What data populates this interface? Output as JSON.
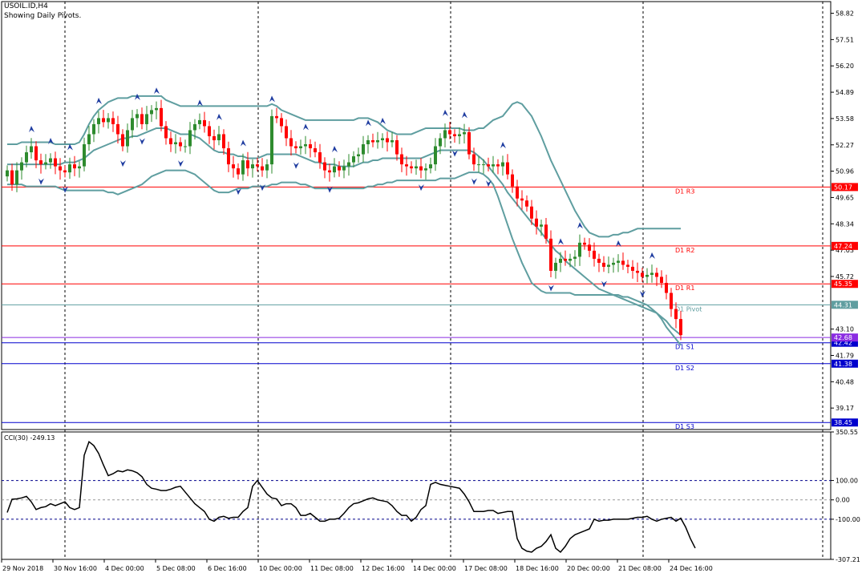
{
  "header": {
    "symbol_line": "USOIL.ID,H4",
    "subtitle": "Showing Daily Pivots."
  },
  "colors": {
    "bull": "#2e8b2e",
    "bear": "#ff0000",
    "band": "#5f9ea0",
    "resistance": "#ff0000",
    "pivot": "#5f9ea0",
    "support": "#0000cd",
    "fractal": "#1e3ca0",
    "axis": "#000000",
    "vline": "#000000"
  },
  "price_axis_ticks": [
    "58.82",
    "57.51",
    "56.20",
    "54.89",
    "53.58",
    "52.27",
    "50.96",
    "49.65",
    "48.34",
    "47.03",
    "45.72",
    "43.10",
    "41.79",
    "40.48",
    "39.17"
  ],
  "pivots": [
    {
      "label": "D1 R3",
      "price": "50.17",
      "kind": "resistance"
    },
    {
      "label": "D1 R2",
      "price": "47.24",
      "kind": "resistance"
    },
    {
      "label": "D1 R1",
      "price": "45.35",
      "kind": "resistance"
    },
    {
      "label": "D1 Pivot",
      "price": "44.31",
      "kind": "pivot"
    },
    {
      "label": "D1 S1",
      "price": "42.42",
      "kind": "support"
    },
    {
      "label": "D1 S2",
      "price": "41.38",
      "kind": "support"
    },
    {
      "label": "D1 S3",
      "price": "38.45",
      "kind": "support"
    }
  ],
  "last_price": "42.68",
  "cci": {
    "label": "CCI(30) -249.13",
    "axis_ticks": [
      "350.55",
      "100.00",
      "0.00",
      "-100.00",
      "-307.21"
    ],
    "levels": [
      100,
      0,
      -100
    ]
  },
  "time_labels": [
    "29 Nov 2018",
    "30 Nov 16:00",
    "4 Dec 00:00",
    "5 Dec 08:00",
    "6 Dec 16:00",
    "10 Dec 00:00",
    "11 Dec 08:00",
    "12 Dec 16:00",
    "14 Dec 00:00",
    "17 Dec 08:00",
    "18 Dec 16:00",
    "20 Dec 00:00",
    "21 Dec 08:00",
    "24 Dec 16:00"
  ],
  "chart_data": {
    "type": "candlestick",
    "symbol": "USOIL.ID",
    "timeframe": "H4",
    "ylim": [
      38.1,
      59.4
    ],
    "cci_ylim": [
      -307.21,
      350.55
    ],
    "candles_count": 141,
    "close": [
      51.0,
      50.3,
      51.0,
      51.4,
      51.9,
      52.2,
      51.5,
      51.3,
      51.4,
      51.6,
      51.2,
      51.0,
      50.9,
      51.3,
      51.1,
      51.2,
      52.3,
      52.8,
      53.3,
      53.6,
      53.4,
      53.6,
      53.3,
      52.8,
      52.2,
      53.0,
      53.6,
      53.8,
      53.3,
      53.8,
      54.0,
      54.1,
      53.2,
      52.6,
      52.3,
      52.4,
      52.2,
      52.2,
      53.0,
      53.3,
      53.5,
      53.2,
      52.7,
      52.5,
      52.8,
      52.1,
      51.3,
      51.1,
      50.8,
      51.5,
      51.1,
      51.3,
      51.2,
      51.0,
      51.3,
      53.7,
      53.6,
      53.2,
      52.6,
      52.2,
      52.1,
      52.2,
      52.3,
      52.1,
      51.9,
      51.4,
      51.0,
      50.9,
      51.2,
      51.0,
      51.2,
      51.4,
      51.7,
      51.8,
      52.3,
      52.5,
      52.4,
      52.5,
      52.6,
      52.4,
      52.5,
      51.8,
      51.3,
      51.2,
      51.1,
      51.2,
      51.0,
      51.1,
      51.3,
      52.2,
      52.6,
      53.0,
      52.8,
      52.7,
      52.8,
      52.9,
      51.8,
      51.3,
      51.3,
      51.3,
      51.2,
      51.3,
      51.2,
      51.4,
      50.8,
      50.2,
      49.6,
      49.5,
      49.2,
      48.6,
      48.2,
      48.3,
      47.6,
      46.0,
      46.4,
      46.6,
      46.5,
      46.6,
      46.7,
      47.4,
      47.3,
      47.0,
      46.6,
      46.4,
      46.2,
      46.3,
      46.4,
      46.5,
      46.3,
      46.2,
      46.0,
      45.9,
      45.7,
      45.8,
      45.9,
      45.7,
      45.4,
      44.9,
      44.1,
      43.6,
      42.8
    ],
    "cci": [
      -65,
      3,
      5,
      10,
      18,
      -10,
      -50,
      -40,
      -35,
      -20,
      -30,
      -20,
      -10,
      -40,
      -50,
      -40,
      230,
      300,
      280,
      240,
      180,
      125,
      135,
      150,
      145,
      155,
      150,
      140,
      120,
      80,
      60,
      55,
      48,
      48,
      55,
      65,
      70,
      40,
      10,
      -20,
      -40,
      -60,
      -100,
      -110,
      -90,
      -85,
      -95,
      -90,
      -90,
      -60,
      -40,
      70,
      100,
      65,
      30,
      10,
      5,
      -30,
      -20,
      -20,
      -40,
      -80,
      -80,
      -70,
      -90,
      -110,
      -110,
      -100,
      -100,
      -95,
      -70,
      -40,
      -20,
      -15,
      -5,
      5,
      10,
      0,
      -5,
      -10,
      -30,
      -60,
      -80,
      -80,
      -110,
      -90,
      -50,
      -30,
      80,
      90,
      80,
      75,
      70,
      65,
      60,
      30,
      -10,
      -60,
      -60,
      -60,
      -55,
      -55,
      -70,
      -65,
      -60,
      -60,
      -200,
      -250,
      -265,
      -270,
      -250,
      -240,
      -215,
      -180,
      -250,
      -270,
      -240,
      -200,
      -180,
      -170,
      -160,
      -150,
      -100,
      -110,
      -105,
      -105,
      -100,
      -100,
      -100,
      -100,
      -95,
      -90,
      -90,
      -85,
      -100,
      -110,
      -100,
      -95,
      -90,
      -110,
      -95,
      -140,
      -200,
      -249.13
    ],
    "bollinger_upper": [
      52.3,
      52.3,
      52.3,
      52.4,
      52.4,
      52.4,
      52.4,
      52.4,
      52.4,
      52.4,
      52.3,
      52.3,
      52.3,
      52.3,
      52.3,
      52.4,
      52.8,
      53.3,
      53.7,
      54.0,
      54.2,
      54.4,
      54.5,
      54.6,
      54.6,
      54.6,
      54.7,
      54.7,
      54.7,
      54.7,
      54.7,
      54.7,
      54.7,
      54.5,
      54.4,
      54.3,
      54.2,
      54.2,
      54.2,
      54.2,
      54.2,
      54.2,
      54.2,
      54.2,
      54.2,
      54.2,
      54.2,
      54.2,
      54.2,
      54.2,
      54.2,
      54.2,
      54.2,
      54.2,
      54.2,
      54.3,
      54.2,
      54.0,
      53.9,
      53.8,
      53.7,
      53.6,
      53.5,
      53.5,
      53.5,
      53.5,
      53.5,
      53.5,
      53.5,
      53.5,
      53.5,
      53.5,
      53.5,
      53.6,
      53.6,
      53.6,
      53.5,
      53.4,
      53.2,
      53.0,
      52.9,
      52.8,
      52.8,
      52.8,
      52.8,
      52.9,
      53.0,
      53.1,
      53.1,
      53.1,
      53.1,
      53.1,
      53.1,
      53.1,
      53.1,
      53.0,
      53.0,
      53.0,
      53.1,
      53.1,
      53.3,
      53.5,
      53.6,
      53.7,
      54.0,
      54.3,
      54.4,
      54.3,
      54.0,
      53.7,
      53.2,
      52.7,
      52.1,
      51.5,
      51.0,
      50.5,
      50.0,
      49.5,
      49.0,
      48.6,
      48.2,
      47.9,
      47.8,
      47.7,
      47.7,
      47.7,
      47.8,
      47.8,
      47.9,
      47.9,
      48.0,
      48.1,
      48.1,
      48.1,
      48.1,
      48.1,
      48.1,
      48.1,
      48.1,
      48.1,
      48.1
    ],
    "bollinger_middle": [
      51.3,
      51.3,
      51.3,
      51.3,
      51.3,
      51.3,
      51.3,
      51.3,
      51.3,
      51.3,
      51.3,
      51.3,
      51.4,
      51.4,
      51.4,
      51.5,
      51.6,
      51.8,
      52.0,
      52.1,
      52.2,
      52.3,
      52.4,
      52.5,
      52.6,
      52.6,
      52.7,
      52.7,
      52.8,
      52.9,
      53.0,
      53.1,
      53.1,
      53.1,
      53.0,
      52.9,
      52.8,
      52.8,
      52.8,
      52.7,
      52.6,
      52.4,
      52.2,
      52.0,
      51.9,
      51.9,
      51.8,
      51.8,
      51.7,
      51.7,
      51.6,
      51.6,
      51.6,
      51.7,
      51.8,
      51.8,
      51.8,
      51.8,
      51.8,
      51.8,
      51.8,
      51.7,
      51.6,
      51.5,
      51.4,
      51.4,
      51.3,
      51.3,
      51.3,
      51.2,
      51.2,
      51.2,
      51.2,
      51.3,
      51.4,
      51.4,
      51.5,
      51.5,
      51.6,
      51.6,
      51.6,
      51.6,
      51.6,
      51.6,
      51.6,
      51.6,
      51.6,
      51.7,
      51.8,
      51.9,
      52.0,
      52.0,
      52.0,
      52.0,
      52.0,
      52.0,
      52.0,
      51.9,
      51.7,
      51.5,
      51.2,
      50.9,
      50.6,
      50.3,
      49.9,
      49.6,
      49.3,
      49.0,
      48.7,
      48.4,
      48.2,
      47.9,
      47.6,
      47.3,
      47.0,
      46.8,
      46.5,
      46.3,
      46.1,
      45.9,
      45.7,
      45.5,
      45.3,
      45.1,
      45.0,
      44.9,
      44.8,
      44.7,
      44.6,
      44.5,
      44.4,
      44.3,
      44.2,
      44.1,
      44.0,
      43.9,
      43.7,
      43.5,
      43.2,
      43.0,
      42.8
    ],
    "bollinger_lower": [
      50.3,
      50.3,
      50.3,
      50.3,
      50.2,
      50.2,
      50.2,
      50.2,
      50.2,
      50.2,
      50.2,
      50.1,
      50.0,
      50.0,
      50.0,
      50.0,
      50.0,
      50.0,
      50.0,
      50.0,
      50.0,
      49.9,
      49.9,
      49.8,
      49.9,
      50.0,
      50.1,
      50.2,
      50.3,
      50.5,
      50.7,
      50.8,
      50.9,
      51.0,
      51.0,
      51.0,
      51.0,
      51.0,
      50.9,
      50.8,
      50.6,
      50.4,
      50.2,
      50.0,
      49.9,
      49.9,
      49.9,
      50.0,
      50.1,
      50.1,
      50.1,
      50.2,
      50.2,
      50.2,
      50.2,
      50.3,
      50.3,
      50.4,
      50.4,
      50.4,
      50.4,
      50.3,
      50.3,
      50.2,
      50.1,
      50.1,
      50.1,
      50.1,
      50.1,
      50.1,
      50.1,
      50.1,
      50.1,
      50.1,
      50.1,
      50.2,
      50.2,
      50.3,
      50.3,
      50.4,
      50.4,
      50.5,
      50.5,
      50.5,
      50.5,
      50.5,
      50.5,
      50.5,
      50.5,
      50.5,
      50.6,
      50.6,
      50.6,
      50.6,
      50.7,
      50.8,
      50.9,
      50.9,
      50.9,
      50.8,
      50.6,
      50.3,
      49.7,
      49.0,
      48.3,
      47.6,
      47.0,
      46.4,
      45.9,
      45.4,
      45.2,
      45.0,
      44.9,
      44.9,
      44.9,
      44.9,
      44.9,
      44.9,
      44.8,
      44.8,
      44.8,
      44.8,
      44.8,
      44.8,
      44.8,
      44.8,
      44.8,
      44.8,
      44.7,
      44.7,
      44.6,
      44.5,
      44.4,
      44.3,
      44.1,
      43.9,
      43.6,
      43.2,
      42.9,
      42.6,
      42.3
    ]
  }
}
